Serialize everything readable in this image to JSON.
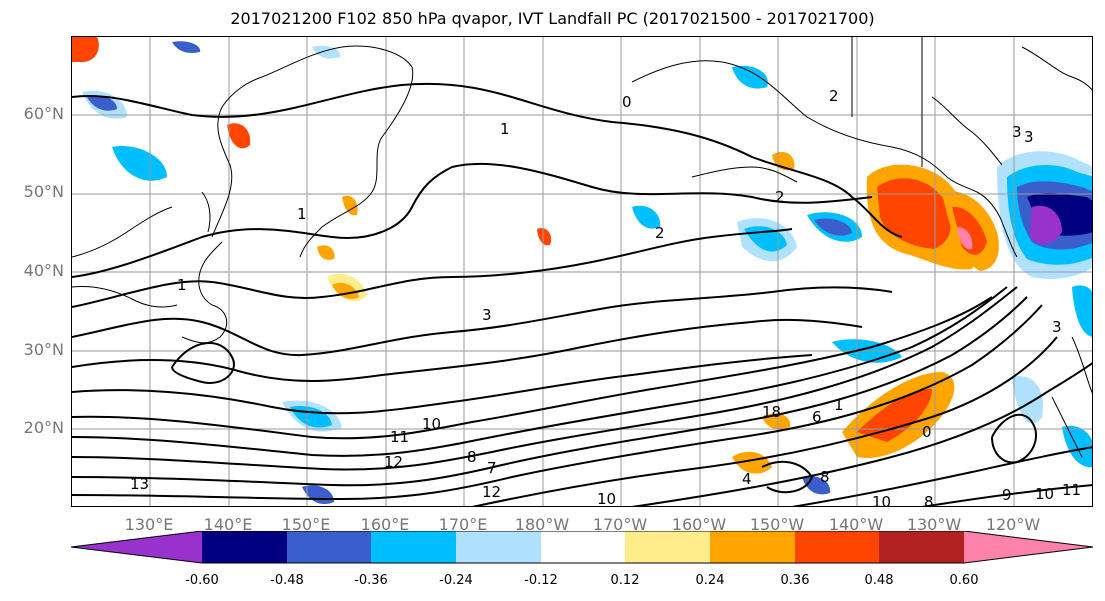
{
  "title": "2017021200 F102 850 hPa qvapor, IVT Landfall PC (2017021500 - 2017021700)",
  "map": {
    "lat_labels": [
      "60°N",
      "50°N",
      "40°N",
      "30°N",
      "20°N"
    ],
    "lon_labels": [
      "130°E",
      "140°E",
      "150°E",
      "160°E",
      "170°E",
      "180°W",
      "170°W",
      "160°W",
      "150°W",
      "140°W",
      "130°W",
      "120°W"
    ],
    "contour_labels": [
      "0",
      "1",
      "2",
      "2",
      "2",
      "3",
      "1",
      "1",
      "3",
      "13",
      "12",
      "11",
      "10",
      "18",
      "10",
      "8",
      "7",
      "12",
      "10",
      "8",
      "6",
      "4",
      "8",
      "9",
      "10",
      "11",
      "0",
      "3",
      "3",
      "1"
    ]
  },
  "colorbar": {
    "colors": [
      "#9932cc",
      "#000080",
      "#3a5fcd",
      "#00bfff",
      "#b0e2ff",
      "#ffffff",
      "#ffec8b",
      "#ffa500",
      "#ff4500",
      "#b22222",
      "#ff82ab"
    ],
    "tick_labels": [
      "-0.60",
      "-0.48",
      "-0.36",
      "-0.24",
      "-0.12",
      "0.12",
      "0.24",
      "0.36",
      "0.48",
      "0.60"
    ]
  }
}
